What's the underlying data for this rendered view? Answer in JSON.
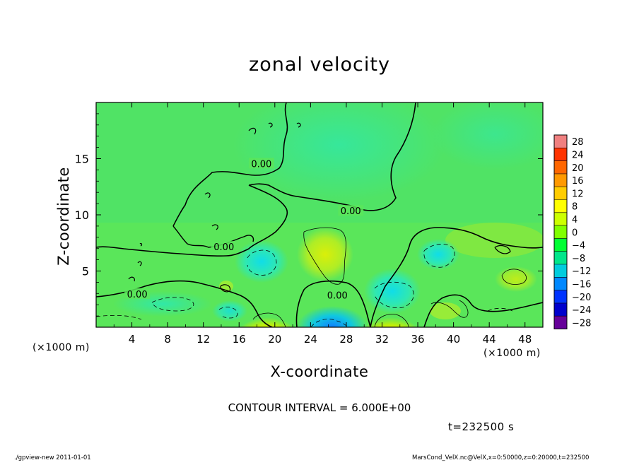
{
  "chart_data": {
    "type": "heatmap",
    "title": "zonal velocity",
    "xlabel": "X-coordinate",
    "ylabel": "Z-coordinate",
    "x_unit_label": "(×1000 m)",
    "x_ticks": [
      4,
      8,
      12,
      16,
      20,
      24,
      28,
      32,
      36,
      40,
      44,
      48
    ],
    "y_ticks": [
      5,
      10,
      15
    ],
    "xlim": [
      0,
      50
    ],
    "ylim": [
      0,
      20
    ],
    "contour_interval_text": "CONTOUR INTERVAL = 6.000E+00",
    "contour_labels": [
      {
        "text": "0.00",
        "x": 18.5,
        "z": 14.5
      },
      {
        "text": "0.00",
        "x": 28.5,
        "z": 10.3
      },
      {
        "text": "0.00",
        "x": 14.3,
        "z": 7.1
      },
      {
        "text": "0.00",
        "x": 4.6,
        "z": 2.9
      },
      {
        "text": "0.00",
        "x": 27.0,
        "z": 2.8
      }
    ],
    "colorbar": {
      "levels": [
        28,
        24,
        20,
        16,
        12,
        8,
        4,
        0,
        -4,
        -8,
        -12,
        -16,
        -20,
        -24,
        -28
      ],
      "colors": [
        "#f08080",
        "#ff3300",
        "#ff6600",
        "#ff9900",
        "#ffcc00",
        "#ffff00",
        "#ccff00",
        "#80ff00",
        "#00ff33",
        "#00e68a",
        "#00ccdd",
        "#0088ff",
        "#0033ff",
        "#0000cc",
        "#660099"
      ]
    },
    "regions": [
      {
        "x": 18,
        "z": 16,
        "u": -2,
        "desc": "upper domain"
      },
      {
        "x": 26,
        "z": 7,
        "u": 7
      },
      {
        "x": 19,
        "z": 0.5,
        "u": 12
      },
      {
        "x": 32.5,
        "z": 0.5,
        "u": 12
      },
      {
        "x": 26,
        "z": 0.3,
        "u": -14
      },
      {
        "x": 33,
        "z": 3,
        "u": -9
      },
      {
        "x": 18,
        "z": 5.5,
        "u": -7
      },
      {
        "x": 38,
        "z": 7,
        "u": -6
      },
      {
        "x": 10,
        "z": 2,
        "u": -4
      }
    ]
  },
  "time_label": "t=232500 s",
  "footer": {
    "left": "./gpview-new   2011-01-01",
    "right": "MarsCond_VelX.nc@VelX,x=0:50000,z=0:20000,t=232500"
  }
}
